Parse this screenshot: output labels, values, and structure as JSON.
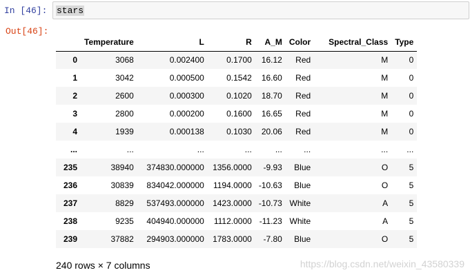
{
  "input_prompt": "In  [46]:",
  "code": "stars",
  "output_prompt": "Out[46]:",
  "table": {
    "columns": [
      "Temperature",
      "L",
      "R",
      "A_M",
      "Color",
      "Spectral_Class",
      "Type"
    ],
    "rows": [
      [
        "0",
        "3068",
        "0.002400",
        "0.1700",
        "16.12",
        "Red",
        "M",
        "0"
      ],
      [
        "1",
        "3042",
        "0.000500",
        "0.1542",
        "16.60",
        "Red",
        "M",
        "0"
      ],
      [
        "2",
        "2600",
        "0.000300",
        "0.1020",
        "18.70",
        "Red",
        "M",
        "0"
      ],
      [
        "3",
        "2800",
        "0.000200",
        "0.1600",
        "16.65",
        "Red",
        "M",
        "0"
      ],
      [
        "4",
        "1939",
        "0.000138",
        "0.1030",
        "20.06",
        "Red",
        "M",
        "0"
      ],
      [
        "...",
        "...",
        "...",
        "...",
        "...",
        "...",
        "...",
        "..."
      ],
      [
        "235",
        "38940",
        "374830.000000",
        "1356.0000",
        "-9.93",
        "Blue",
        "O",
        "5"
      ],
      [
        "236",
        "30839",
        "834042.000000",
        "1194.0000",
        "-10.63",
        "Blue",
        "O",
        "5"
      ],
      [
        "237",
        "8829",
        "537493.000000",
        "1423.0000",
        "-10.73",
        "White",
        "A",
        "5"
      ],
      [
        "238",
        "9235",
        "404940.000000",
        "1112.0000",
        "-11.23",
        "White",
        "A",
        "5"
      ],
      [
        "239",
        "37882",
        "294903.000000",
        "1783.0000",
        "-7.80",
        "Blue",
        "O",
        "5"
      ]
    ]
  },
  "footer": "240 rows × 7 columns",
  "watermark": "https://blog.csdn.net/weixin_43580339"
}
